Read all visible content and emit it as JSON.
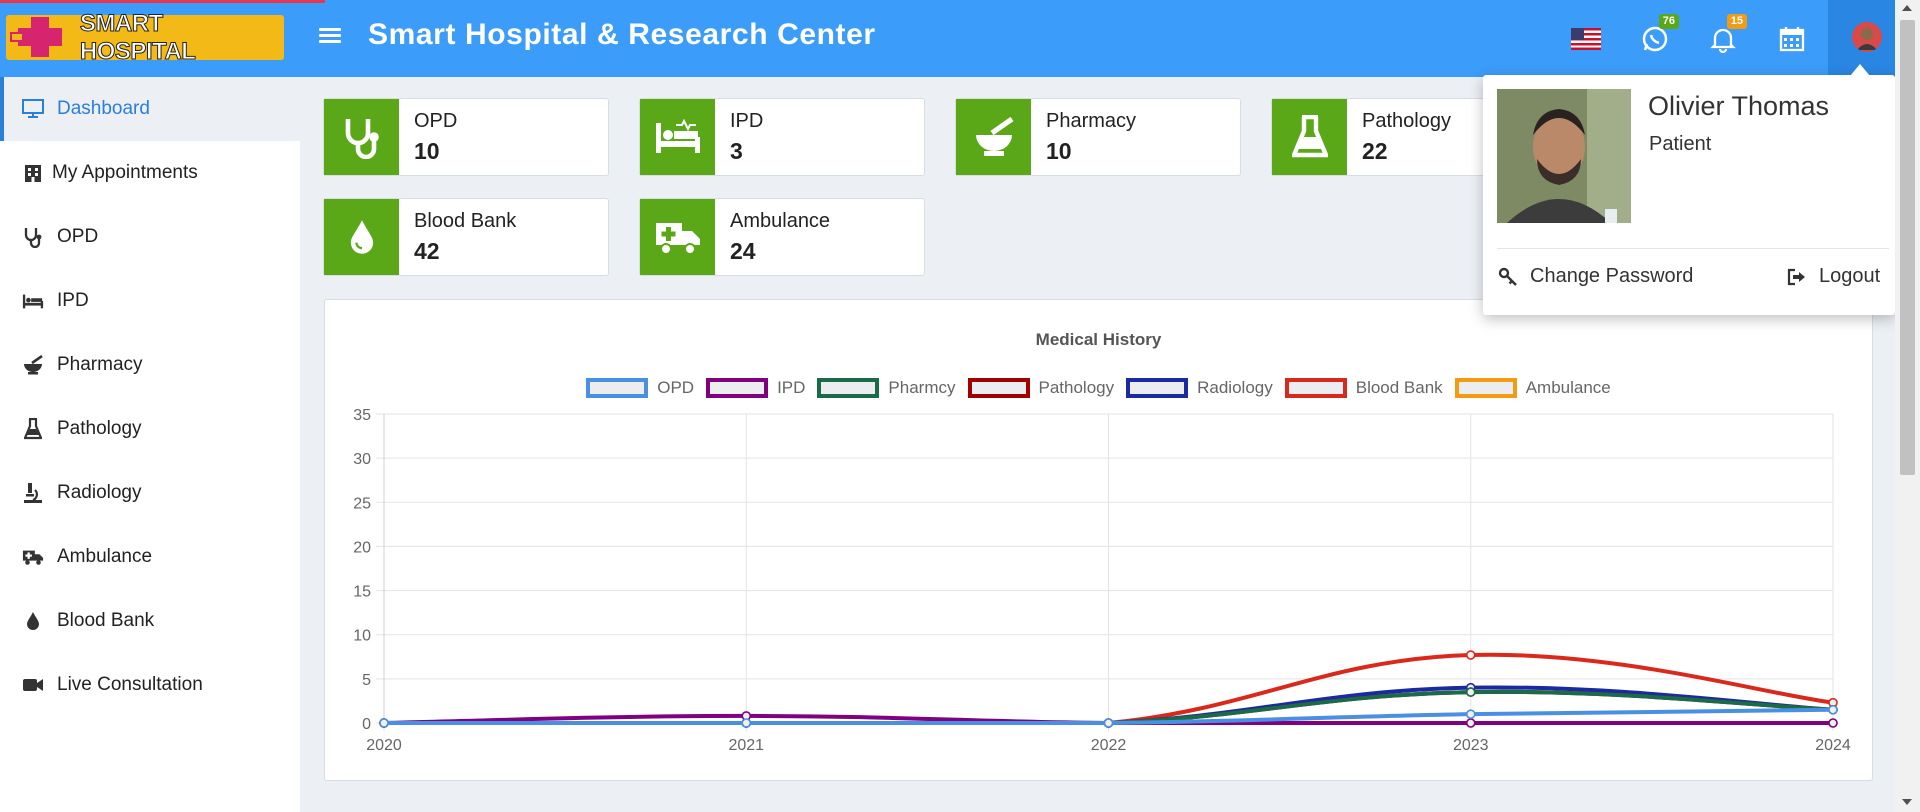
{
  "header": {
    "logo_text": "SMART HOSPITAL",
    "title": "Smart Hospital & Research Center",
    "whatsapp_badge": "76",
    "notification_badge": "15",
    "colors": {
      "bar": "#3c9cf9",
      "badge_green": "#5aa817",
      "badge_orange": "#f39c12"
    }
  },
  "sidebar": {
    "items": [
      {
        "label": "Dashboard",
        "icon": "monitor-icon",
        "active": true
      },
      {
        "label": "My Appointments",
        "icon": "building-icon"
      },
      {
        "label": "OPD",
        "icon": "stethoscope-icon"
      },
      {
        "label": "IPD",
        "icon": "bed-icon"
      },
      {
        "label": "Pharmacy",
        "icon": "mortar-pestle-icon"
      },
      {
        "label": "Pathology",
        "icon": "flask-icon"
      },
      {
        "label": "Radiology",
        "icon": "microscope-icon"
      },
      {
        "label": "Ambulance",
        "icon": "ambulance-icon"
      },
      {
        "label": "Blood Bank",
        "icon": "tint-icon"
      },
      {
        "label": "Live Consultation",
        "icon": "video-icon"
      }
    ]
  },
  "cards": [
    {
      "label": "OPD",
      "value": "10",
      "icon": "stethoscope-icon"
    },
    {
      "label": "IPD",
      "value": "3",
      "icon": "bed-icon"
    },
    {
      "label": "Pharmacy",
      "value": "10",
      "icon": "mortar-pestle-icon"
    },
    {
      "label": "Pathology",
      "value": "22",
      "icon": "flask-icon"
    },
    {
      "label": "Blood Bank",
      "value": "42",
      "icon": "tint-icon"
    },
    {
      "label": "Ambulance",
      "value": "24",
      "icon": "ambulance-icon"
    }
  ],
  "chart_data": {
    "type": "line",
    "title": "Medical History",
    "x": [
      "2020",
      "2021",
      "2022",
      "2023",
      "2024"
    ],
    "ylim": [
      0,
      35
    ],
    "yticks": [
      "0",
      "5",
      "10",
      "15",
      "20",
      "25",
      "30",
      "35"
    ],
    "grid": true,
    "legend_position": "top",
    "series": [
      {
        "name": "OPD",
        "color": "#4a90e2",
        "values": [
          0,
          0,
          0,
          1,
          1.5
        ]
      },
      {
        "name": "IPD",
        "color": "#800080",
        "values": [
          0,
          0.8,
          0,
          0,
          0
        ]
      },
      {
        "name": "Pharmcy",
        "color": "#1a6b4a",
        "values": [
          0,
          0,
          0,
          3.5,
          1.5
        ]
      },
      {
        "name": "Pathology",
        "color": "#a00000",
        "values": [
          0,
          0,
          0,
          3.5,
          1.5
        ]
      },
      {
        "name": "Radiology",
        "color": "#1a2aa0",
        "values": [
          0,
          0,
          0,
          4,
          1.5
        ]
      },
      {
        "name": "Blood Bank",
        "color": "#d9291c",
        "values": [
          0,
          0,
          0,
          7.7,
          2.3
        ]
      },
      {
        "name": "Ambulance",
        "color": "#f39c12",
        "values": [
          0,
          0,
          0,
          0,
          0
        ]
      }
    ]
  },
  "dropdown": {
    "name": "Olivier Thomas",
    "role": "Patient",
    "change_password": "Change Password",
    "logout": "Logout"
  }
}
